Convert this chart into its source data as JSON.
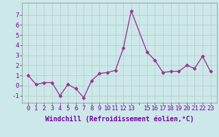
{
  "x": [
    0,
    1,
    2,
    3,
    4,
    5,
    6,
    7,
    8,
    9,
    10,
    11,
    12,
    13,
    15,
    16,
    17,
    18,
    19,
    20,
    21,
    22,
    23
  ],
  "y": [
    1.0,
    0.1,
    0.3,
    0.3,
    -1.0,
    0.1,
    -0.3,
    -1.2,
    0.5,
    1.2,
    1.3,
    1.5,
    3.7,
    7.4,
    3.3,
    2.5,
    1.3,
    1.4,
    1.4,
    2.0,
    1.7,
    2.9,
    1.4
  ],
  "line_color": "#993399",
  "marker": "D",
  "marker_size": 2.5,
  "linewidth": 1.0,
  "xlabel": "Windchill (Refroidissement éolien,°C)",
  "xlabel_fontsize": 7,
  "ylim": [
    -1.7,
    8.2
  ],
  "ytick_positions": [
    -1,
    0,
    1,
    2,
    3,
    4,
    5,
    6,
    7
  ],
  "ytick_labels": [
    "-1",
    "0",
    "1",
    "2",
    "3",
    "4",
    "5",
    "6",
    "7"
  ],
  "grid_color": "#b8cece",
  "background_color": "#cce8e8",
  "tick_fontsize": 6.5,
  "label_color": "#7700aa"
}
